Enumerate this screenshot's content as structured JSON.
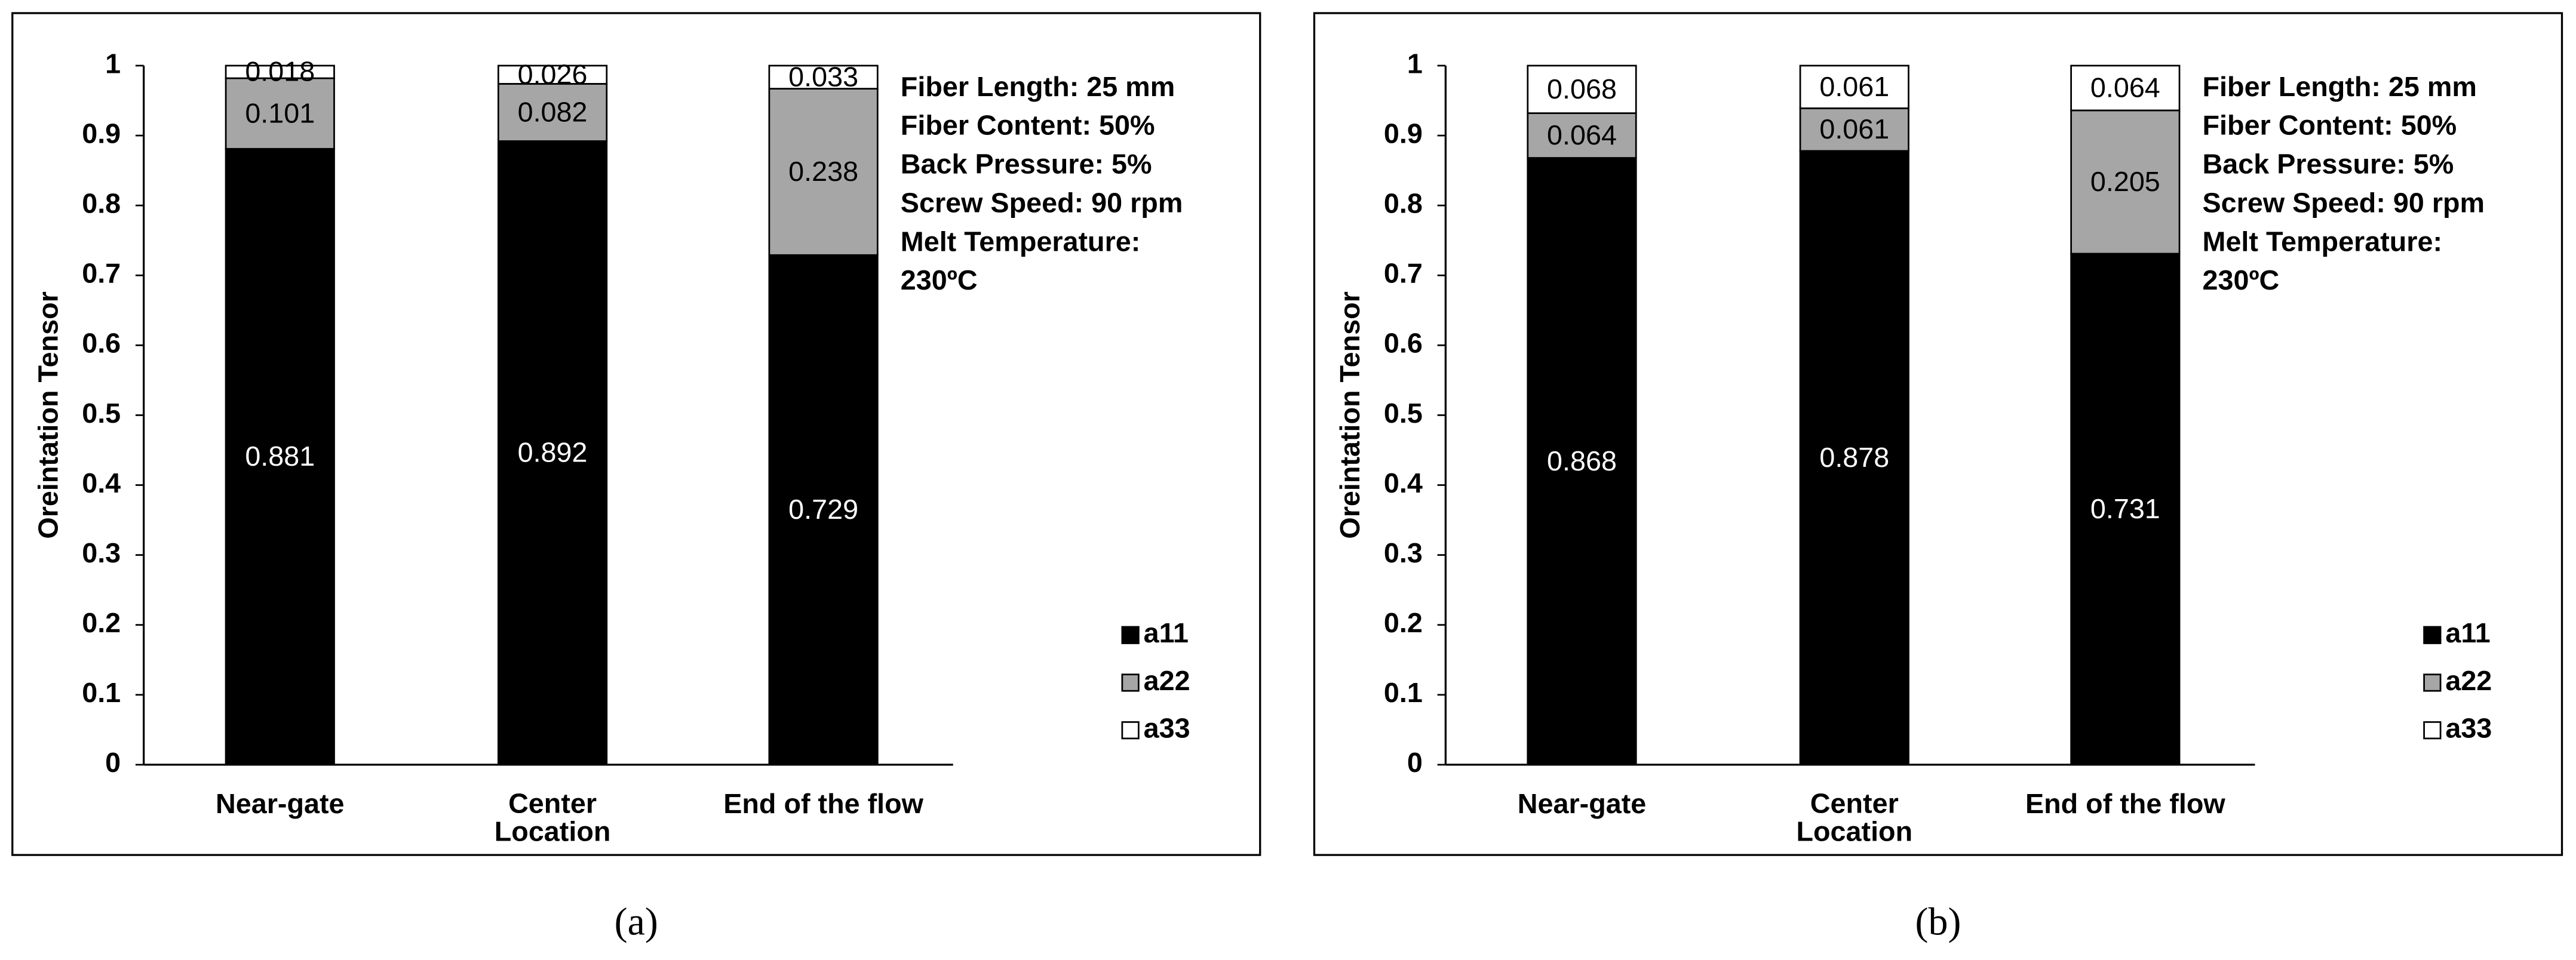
{
  "chart_data": [
    {
      "type": "stacked_bar",
      "caption": "(a)",
      "ylabel": "Oreintation Tensor",
      "categories": [
        "Near-gate",
        "Center\nLocation",
        "End of the flow"
      ],
      "series": [
        {
          "name": "a11",
          "color": "#000000",
          "values": [
            0.881,
            0.892,
            0.729
          ]
        },
        {
          "name": "a22",
          "color": "#a6a6a6",
          "values": [
            0.101,
            0.082,
            0.238
          ]
        },
        {
          "name": "a33",
          "color": "#ffffff",
          "values": [
            0.018,
            0.026,
            0.033
          ]
        }
      ],
      "ylim": [
        0,
        1
      ],
      "yticks": [
        0,
        0.1,
        0.2,
        0.3,
        0.4,
        0.5,
        0.6,
        0.7,
        0.8,
        0.9,
        1
      ],
      "legend": "lower right",
      "annotations": [
        "Fiber Length: 25 mm",
        "Fiber Content: 50%",
        "Back Pressure: 5%",
        "Screw Speed: 90 rpm",
        "Melt Temperature:",
        "230ºC"
      ]
    },
    {
      "type": "stacked_bar",
      "caption": "(b)",
      "ylabel": "Oreintation Tensor",
      "categories": [
        "Near-gate",
        "Center\nLocation",
        "End of the flow"
      ],
      "series": [
        {
          "name": "a11",
          "color": "#000000",
          "values": [
            0.868,
            0.878,
            0.731
          ]
        },
        {
          "name": "a22",
          "color": "#a6a6a6",
          "values": [
            0.064,
            0.061,
            0.205
          ]
        },
        {
          "name": "a33",
          "color": "#ffffff",
          "values": [
            0.068,
            0.061,
            0.064
          ]
        }
      ],
      "ylim": [
        0,
        1
      ],
      "yticks": [
        0,
        0.1,
        0.2,
        0.3,
        0.4,
        0.5,
        0.6,
        0.7,
        0.8,
        0.9,
        1
      ],
      "legend": "lower right",
      "annotations": [
        "Fiber Length: 25 mm",
        "Fiber Content: 50%",
        "Back Pressure: 5%",
        "Screw Speed: 90 rpm",
        "Melt Temperature:",
        "230ºC"
      ]
    }
  ]
}
